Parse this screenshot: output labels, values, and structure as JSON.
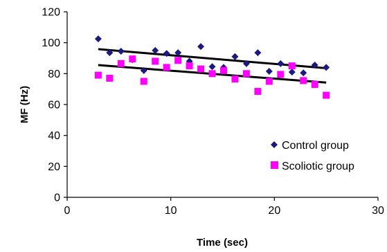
{
  "chart_data": {
    "type": "scatter",
    "title": "",
    "xlabel": "Time (sec)",
    "ylabel": "MF (Hz)",
    "xlim": [
      0,
      30
    ],
    "ylim": [
      0,
      120
    ],
    "x_ticks": [
      0,
      10,
      20,
      30
    ],
    "y_ticks": [
      0,
      20,
      40,
      60,
      80,
      100,
      120
    ],
    "x_tick_labels": [
      "0",
      "10",
      "20",
      "30"
    ],
    "y_tick_labels": [
      "0",
      "20",
      "40",
      "60",
      "80",
      "100",
      "120"
    ],
    "grid": false,
    "legend_position": "bottom-right",
    "series": [
      {
        "name": "Control group",
        "marker": "diamond",
        "color": "#1a1a80",
        "x": [
          3,
          4.1,
          5.2,
          6.3,
          7.4,
          8.5,
          9.6,
          10.7,
          11.8,
          12.9,
          14.0,
          15.1,
          16.2,
          17.3,
          18.4,
          19.5,
          20.6,
          21.7,
          22.8,
          23.9,
          25.0
        ],
        "y": [
          102.5,
          93.5,
          94.5,
          89.0,
          82.0,
          95.0,
          93.0,
          93.5,
          88.0,
          97.5,
          84.5,
          84.0,
          91.0,
          86.5,
          93.5,
          81.5,
          86.5,
          81.0,
          80.5,
          85.5,
          84.0
        ],
        "trendline": {
          "x": [
            3,
            25
          ],
          "y": [
            95.8,
            83.5
          ]
        }
      },
      {
        "name": "Scoliotic group",
        "marker": "square",
        "color": "#ff00ff",
        "x": [
          3,
          4.1,
          5.2,
          6.3,
          7.4,
          8.5,
          9.6,
          10.7,
          11.8,
          12.9,
          14.0,
          15.1,
          16.2,
          17.3,
          18.4,
          19.5,
          20.6,
          21.7,
          22.8,
          23.9,
          25.0
        ],
        "y": [
          79.0,
          77.0,
          86.5,
          89.5,
          75.0,
          88.0,
          84.0,
          88.5,
          85.0,
          83.0,
          80.0,
          82.0,
          76.5,
          80.0,
          68.5,
          75.0,
          79.5,
          85.0,
          75.5,
          73.0,
          66.0
        ],
        "trendline": {
          "x": [
            3,
            25
          ],
          "y": [
            85.5,
            74.2
          ]
        }
      }
    ]
  }
}
